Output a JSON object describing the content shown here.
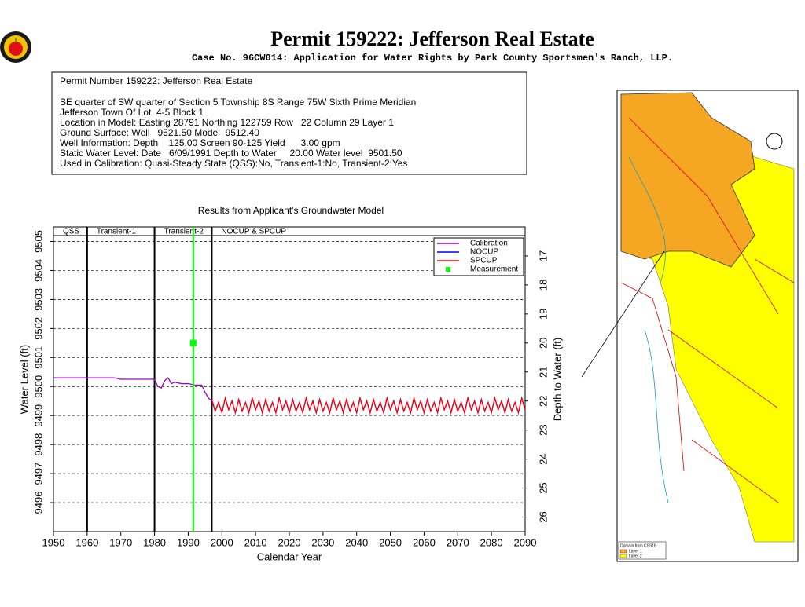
{
  "header": {
    "title": "Permit 159222:  Jefferson Real Estate",
    "subtitle": "Case No. 96CW014: Application for Water Rights by Park County Sportsmen's Ranch, LLP."
  },
  "info_box": {
    "lines": [
      "Permit Number 159222: Jefferson Real Estate",
      "SE quarter of SW quarter of Section 5 Township 8S Range 75W Sixth Prime Meridian",
      "Jefferson Town Of Lot  4-5 Block 1",
      "Location in Model: Easting 28791 Northing 122759 Row   22 Column 29 Layer 1",
      "Ground Surface: Well   9521.50 Model  9512.40",
      "Well Information: Depth    125.00 Screen 90-125 Yield      3.00 gpm",
      "Static Water Level: Date   6/09/1991 Depth to Water     20.00 Water level  9501.50",
      "Used in Calibration: Quasi-Steady State (QSS):No, Transient-1:No, Transient-2:Yes"
    ]
  },
  "map": {
    "legend_title": "Domain from CSS1B",
    "legend_items": [
      "Layer 1",
      "Layer 2"
    ]
  },
  "chart_data": {
    "type": "line",
    "title": "Results from Applicant's Groundwater Model",
    "xlabel": "Calendar Year",
    "ylabel": "Water Level (ft)",
    "y2label": "Depth to Water (ft)",
    "xlim": [
      1950,
      2090
    ],
    "xticks": [
      1950,
      1960,
      1970,
      1980,
      1990,
      2000,
      2010,
      2020,
      2030,
      2040,
      2050,
      2060,
      2070,
      2080,
      2090
    ],
    "ylim": [
      9495,
      9505.5
    ],
    "yticks": [
      9496,
      9497,
      9498,
      9499,
      9500,
      9501,
      9502,
      9503,
      9504,
      9505
    ],
    "y2lim": [
      26.5,
      16
    ],
    "y2ticks": [
      17,
      18,
      19,
      20,
      21,
      22,
      23,
      24,
      25,
      26
    ],
    "grid": "y",
    "legend": "top-right",
    "periods": [
      "QSS",
      "Transient-1",
      "Transient-2",
      "NOCUP & SPCUP"
    ],
    "period_boundaries": [
      1960,
      1980,
      1997
    ],
    "series": [
      {
        "name": "Calibration",
        "color": "#9900cc",
        "x": [
          1950,
          1960,
          1968,
          1970,
          1975,
          1980,
          1981,
          1982,
          1983,
          1984,
          1985,
          1986,
          1988,
          1990,
          1992,
          1994,
          1995,
          1996,
          1997
        ],
        "values": [
          9500.3,
          9500.3,
          9500.3,
          9500.25,
          9500.25,
          9500.25,
          9500.0,
          9499.95,
          9500.2,
          9500.3,
          9500.1,
          9500.15,
          9500.1,
          9500.1,
          9500.05,
          9500.05,
          9499.8,
          9499.6,
          9499.5
        ]
      },
      {
        "name": "NOCUP",
        "color": "#0000ff",
        "x": [
          1997,
          1998,
          1999,
          2000,
          2001,
          2002,
          2003,
          2004,
          2005,
          2006,
          2007,
          2008,
          2009,
          2010,
          2011,
          2012,
          2013,
          2014,
          2015,
          2016,
          2017,
          2018,
          2019,
          2020,
          2021,
          2022,
          2023,
          2024,
          2025,
          2026,
          2027,
          2028,
          2029,
          2030,
          2031,
          2032,
          2033,
          2034,
          2035,
          2036,
          2037,
          2038,
          2039,
          2040,
          2041,
          2042,
          2043,
          2044,
          2045,
          2046,
          2047,
          2048,
          2049,
          2050,
          2051,
          2052,
          2053,
          2054,
          2055,
          2056,
          2057,
          2058,
          2059,
          2060,
          2061,
          2062,
          2063,
          2064,
          2065,
          2066,
          2067,
          2068,
          2069,
          2070,
          2071,
          2072,
          2073,
          2074,
          2075,
          2076,
          2077,
          2078,
          2079,
          2080,
          2081,
          2082,
          2083,
          2084,
          2085,
          2086,
          2087,
          2088,
          2089,
          2090
        ],
        "values": [
          9499.55,
          9499.15,
          9499.45,
          9499.1,
          9499.6,
          9499.2,
          9499.5,
          9499.1,
          9499.55,
          9499.15,
          9499.45,
          9499.1,
          9499.6,
          9499.2,
          9499.5,
          9499.1,
          9499.55,
          9499.15,
          9499.45,
          9499.1,
          9499.6,
          9499.2,
          9499.5,
          9499.1,
          9499.55,
          9499.15,
          9499.45,
          9499.1,
          9499.6,
          9499.2,
          9499.5,
          9499.1,
          9499.55,
          9499.15,
          9499.45,
          9499.1,
          9499.6,
          9499.2,
          9499.5,
          9499.1,
          9499.55,
          9499.15,
          9499.45,
          9499.1,
          9499.6,
          9499.2,
          9499.5,
          9499.1,
          9499.55,
          9499.15,
          9499.45,
          9499.1,
          9499.6,
          9499.2,
          9499.5,
          9499.1,
          9499.55,
          9499.15,
          9499.45,
          9499.1,
          9499.6,
          9499.2,
          9499.5,
          9499.1,
          9499.55,
          9499.15,
          9499.45,
          9499.1,
          9499.6,
          9499.2,
          9499.5,
          9499.1,
          9499.55,
          9499.15,
          9499.45,
          9499.1,
          9499.6,
          9499.2,
          9499.5,
          9499.1,
          9499.55,
          9499.15,
          9499.45,
          9499.1,
          9499.6,
          9499.2,
          9499.5,
          9499.1,
          9499.55,
          9499.15,
          9499.45,
          9499.1,
          9499.6,
          9499.2
        ]
      },
      {
        "name": "SPCUP",
        "color": "#ff0000",
        "x": [
          1997,
          1998,
          1999,
          2000,
          2001,
          2002,
          2003,
          2004,
          2005,
          2006,
          2007,
          2008,
          2009,
          2010,
          2011,
          2012,
          2013,
          2014,
          2015,
          2016,
          2017,
          2018,
          2019,
          2020,
          2021,
          2022,
          2023,
          2024,
          2025,
          2026,
          2027,
          2028,
          2029,
          2030,
          2031,
          2032,
          2033,
          2034,
          2035,
          2036,
          2037,
          2038,
          2039,
          2040,
          2041,
          2042,
          2043,
          2044,
          2045,
          2046,
          2047,
          2048,
          2049,
          2050,
          2051,
          2052,
          2053,
          2054,
          2055,
          2056,
          2057,
          2058,
          2059,
          2060,
          2061,
          2062,
          2063,
          2064,
          2065,
          2066,
          2067,
          2068,
          2069,
          2070,
          2071,
          2072,
          2073,
          2074,
          2075,
          2076,
          2077,
          2078,
          2079,
          2080,
          2081,
          2082,
          2083,
          2084,
          2085,
          2086,
          2087,
          2088,
          2089,
          2090
        ],
        "values": [
          9499.55,
          9499.15,
          9499.45,
          9499.1,
          9499.6,
          9499.2,
          9499.5,
          9499.1,
          9499.55,
          9499.15,
          9499.45,
          9499.1,
          9499.6,
          9499.2,
          9499.5,
          9499.1,
          9499.55,
          9499.15,
          9499.45,
          9499.1,
          9499.6,
          9499.2,
          9499.5,
          9499.1,
          9499.55,
          9499.15,
          9499.45,
          9499.1,
          9499.6,
          9499.2,
          9499.5,
          9499.1,
          9499.55,
          9499.15,
          9499.45,
          9499.1,
          9499.6,
          9499.2,
          9499.5,
          9499.1,
          9499.55,
          9499.15,
          9499.45,
          9499.1,
          9499.6,
          9499.2,
          9499.5,
          9499.1,
          9499.55,
          9499.15,
          9499.45,
          9499.1,
          9499.6,
          9499.2,
          9499.5,
          9499.1,
          9499.55,
          9499.15,
          9499.45,
          9499.1,
          9499.6,
          9499.2,
          9499.5,
          9499.1,
          9499.55,
          9499.15,
          9499.45,
          9499.1,
          9499.6,
          9499.2,
          9499.5,
          9499.1,
          9499.55,
          9499.15,
          9499.45,
          9499.1,
          9499.6,
          9499.2,
          9499.5,
          9499.1,
          9499.55,
          9499.15,
          9499.45,
          9499.1,
          9499.6,
          9499.2,
          9499.5,
          9499.1,
          9499.55,
          9499.15,
          9499.45,
          9499.1,
          9499.6,
          9499.2
        ]
      },
      {
        "name": "Measurement",
        "color": "#00ff00",
        "x": [
          1991.5
        ],
        "values": [
          9501.5
        ]
      }
    ]
  }
}
